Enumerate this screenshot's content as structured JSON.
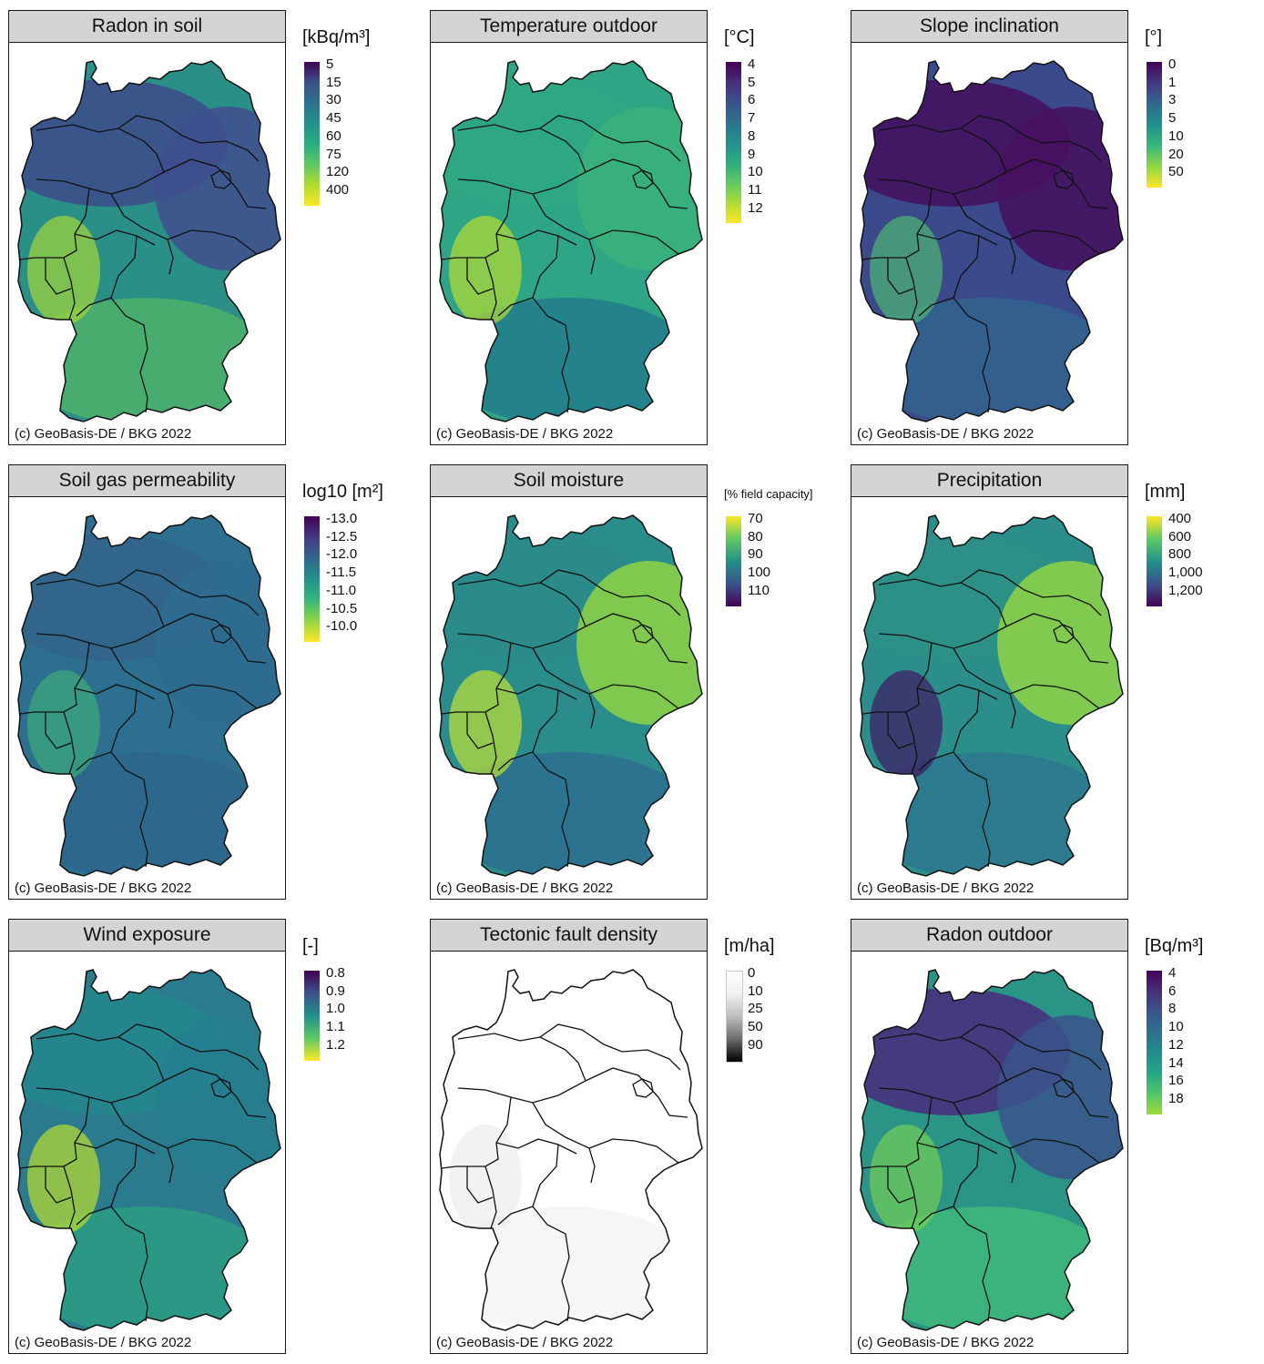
{
  "credit": "(c) GeoBasis-DE / BKG 2022",
  "panels": [
    {
      "title": "Radon in soil",
      "unit": "[kBq/m³]",
      "ticks": [
        "5",
        "15",
        "30",
        "45",
        "60",
        "75",
        "120",
        "400"
      ],
      "gradient": [
        "#440154",
        "#3b528b",
        "#2c728e",
        "#21918c",
        "#28ae80",
        "#5ec962",
        "#addc30",
        "#fde725"
      ],
      "colors": {
        "base": "#2a8f86",
        "north": "#3b4f8a",
        "east": "#3f4f8e",
        "south": "#4fb26b",
        "accent": "#a2d63a"
      }
    },
    {
      "title": "Temperature outdoor",
      "unit": "[°C]",
      "ticks": [
        "4",
        "5",
        "6",
        "7",
        "8",
        "9",
        "10",
        "11",
        "12"
      ],
      "gradient": [
        "#440154",
        "#472d7b",
        "#3b528b",
        "#2c728e",
        "#21918c",
        "#28ae80",
        "#5ec962",
        "#addc30",
        "#fde725"
      ],
      "colors": {
        "base": "#2ea584",
        "north": "#2fa983",
        "east": "#38b17c",
        "south": "#227b8c",
        "accent": "#b6db32"
      }
    },
    {
      "title": "Slope inclination",
      "unit": "[°]",
      "ticks": [
        "0",
        "1",
        "3",
        "5",
        "10",
        "20",
        "50"
      ],
      "gradient": [
        "#440154",
        "#443983",
        "#31688e",
        "#21918c",
        "#35b779",
        "#90d743",
        "#fde725"
      ],
      "colors": {
        "base": "#3b4a8a",
        "north": "#44125f",
        "east": "#45115f",
        "south": "#31638d",
        "accent": "#4fb773"
      }
    },
    {
      "title": "Soil gas permeability",
      "unit": "log10 [m²]",
      "ticks": [
        "-13.0",
        "-12.5",
        "-12.0",
        "-11.5",
        "-11.0",
        "-10.5",
        "-10.0"
      ],
      "gradient": [
        "#440154",
        "#443983",
        "#31688e",
        "#21918c",
        "#35b779",
        "#90d743",
        "#fde725"
      ],
      "colors": {
        "base": "#2d6f8e",
        "north": "#326589",
        "east": "#2e6c8e",
        "south": "#2f668c",
        "accent": "#3bab7b"
      }
    },
    {
      "title": "Soil moisture",
      "unit": "[% field capacity]",
      "ticks": [
        "70",
        "80",
        "90",
        "100",
        "110"
      ],
      "gradient": [
        "#fde725",
        "#5ec962",
        "#21918c",
        "#3b528b",
        "#440154"
      ],
      "colors": {
        "base": "#2b8d8b",
        "north": "#2a8b8a",
        "east": "#8ed344",
        "south": "#2c6f8e",
        "accent": "#bfe134"
      }
    },
    {
      "title": "Precipitation",
      "unit": "[mm]",
      "ticks": [
        "400",
        "600",
        "800",
        "1,000",
        "1,200"
      ],
      "gradient": [
        "#fde725",
        "#5ec962",
        "#21918c",
        "#3b528b",
        "#440154"
      ],
      "colors": {
        "base": "#2b8e8a",
        "north": "#2c9086",
        "east": "#8fd544",
        "south": "#2d778e",
        "accent": "#3e1a63"
      }
    },
    {
      "title": "Wind exposure",
      "unit": "[-]",
      "ticks": [
        "0.8",
        "0.9",
        "1.0",
        "1.1",
        "1.2"
      ],
      "gradient": [
        "#440154",
        "#3b528b",
        "#21918c",
        "#5ec962",
        "#fde725"
      ],
      "colors": {
        "base": "#2a7b8e",
        "north": "#25868d",
        "east": "#247e8e",
        "south": "#2b9e84",
        "accent": "#b9de2d"
      }
    },
    {
      "title": "Tectonic fault density",
      "unit": "[m/ha]",
      "ticks": [
        "0",
        "10",
        "25",
        "50",
        "90"
      ],
      "gradient": [
        "#ffffff",
        "#f0f0f0",
        "#bdbdbd",
        "#6b6b6b",
        "#000000"
      ],
      "colors": {
        "base": "#ffffff",
        "north": "#ffffff",
        "east": "#ffffff",
        "south": "#f4f4f4",
        "accent": "#ececec"
      }
    },
    {
      "title": "Radon outdoor",
      "unit": "[Bq/m³]",
      "ticks": [
        "4",
        "6",
        "8",
        "10",
        "12",
        "14",
        "16",
        "18"
      ],
      "gradient": [
        "#440154",
        "#462f7c",
        "#3a548c",
        "#2d718e",
        "#228c8d",
        "#23a884",
        "#52c569",
        "#a0da39"
      ],
      "colors": {
        "base": "#2a9486",
        "north": "#46317c",
        "east": "#39548b",
        "south": "#3fb77a",
        "accent": "#74cf55"
      }
    }
  ]
}
